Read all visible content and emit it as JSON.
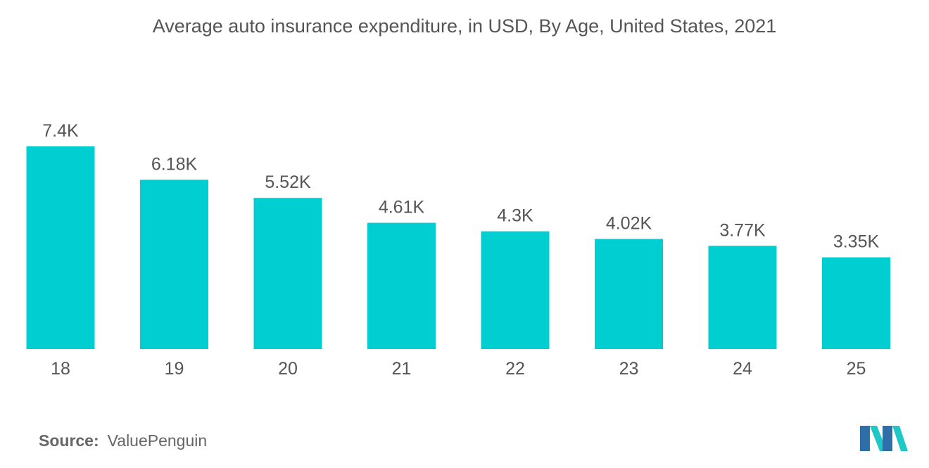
{
  "chart_data": {
    "type": "bar",
    "title": "Average auto insurance expenditure, in USD, By Age, United States, 2021",
    "categories": [
      "18",
      "19",
      "20",
      "21",
      "22",
      "23",
      "24",
      "25"
    ],
    "values": [
      7400,
      6180,
      5520,
      4610,
      4300,
      4020,
      3770,
      3350
    ],
    "data_labels": [
      "7.4K",
      "6.18K",
      "5.52K",
      "4.61K",
      "4.3K",
      "4.02K",
      "3.77K",
      "3.35K"
    ],
    "xlabel": "",
    "ylabel": "",
    "ylim": [
      0,
      7400
    ],
    "grid": false,
    "legend": "none"
  },
  "source": {
    "label": "Source:",
    "value": "ValuePenguin"
  },
  "colors": {
    "bar": "#00CED1",
    "text": "#555555",
    "logo_dark": "#2E6FA8",
    "logo_light": "#1FC7C7"
  },
  "logo": {
    "icon": "mordor-intelligence-logo-icon"
  }
}
